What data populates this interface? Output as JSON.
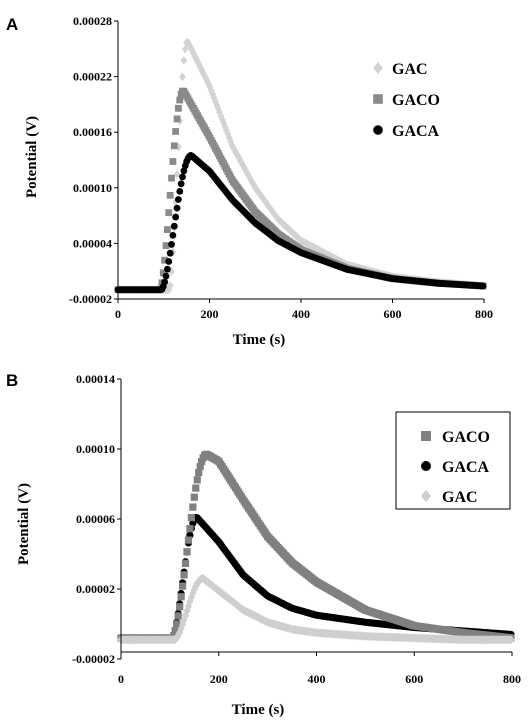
{
  "chart_data": [
    {
      "panel": "A",
      "type": "scatter",
      "xlabel": "Time (s)",
      "ylabel": "Potential (V)",
      "xlim": [
        0,
        800
      ],
      "ylim": [
        -2e-05,
        0.00028
      ],
      "x_ticks": [
        "0",
        "200",
        "400",
        "600",
        "800"
      ],
      "y_ticks": [
        "-0.00002",
        "0.00004",
        "0.00010",
        "0.00016",
        "0.00022",
        "0.00028"
      ],
      "y_tick_values": [
        -2e-05,
        4e-05,
        0.0001,
        0.00016,
        0.00022,
        0.00028
      ],
      "grid": false,
      "legend_position": "top-right",
      "legend_order": [
        "GAC",
        "GACO",
        "GACA"
      ],
      "series": [
        {
          "name": "GAC",
          "marker": "diamond",
          "color": "#d3d3d3",
          "baseline": -1e-05,
          "onset": 112,
          "peak_time": 152,
          "peak": 0.000258,
          "decay": [
            [
              152,
              0.000258
            ],
            [
              200,
              0.00021
            ],
            [
              250,
              0.000145
            ],
            [
              300,
              0.0001
            ],
            [
              350,
              6.6e-05
            ],
            [
              400,
              4.3e-05
            ],
            [
              500,
              1.7e-05
            ],
            [
              600,
              4e-06
            ],
            [
              700,
              -2e-06
            ],
            [
              800,
              -6e-06
            ]
          ]
        },
        {
          "name": "GACO",
          "marker": "square",
          "color": "#8a8a8a",
          "baseline": -1e-05,
          "onset": 92,
          "peak_time": 143,
          "peak": 0.000205,
          "decay": [
            [
              143,
              0.000205
            ],
            [
              200,
              0.000155
            ],
            [
              250,
              0.000108
            ],
            [
              300,
              7.4e-05
            ],
            [
              350,
              5e-05
            ],
            [
              400,
              3.3e-05
            ],
            [
              500,
              1.3e-05
            ],
            [
              600,
              2e-06
            ],
            [
              700,
              -3e-06
            ],
            [
              800,
              -6e-06
            ]
          ]
        },
        {
          "name": "GACA",
          "marker": "circle",
          "color": "#000000",
          "baseline": -1e-05,
          "onset": 95,
          "peak_time": 160,
          "peak": 0.000135,
          "decay": [
            [
              160,
              0.000135
            ],
            [
              200,
              0.000118
            ],
            [
              250,
              8.7e-05
            ],
            [
              300,
              6.2e-05
            ],
            [
              350,
              4.3e-05
            ],
            [
              400,
              3e-05
            ],
            [
              500,
              1.2e-05
            ],
            [
              600,
              2e-06
            ],
            [
              700,
              -3e-06
            ],
            [
              800,
              -6e-06
            ]
          ]
        }
      ]
    },
    {
      "panel": "B",
      "type": "scatter",
      "xlabel": "Time  (s)",
      "ylabel": "Potential (V)",
      "xlim": [
        0,
        800
      ],
      "ylim": [
        -2e-05,
        0.00014
      ],
      "x_ticks": [
        "0",
        "200",
        "400",
        "600",
        "800"
      ],
      "y_ticks": [
        "-0.00002",
        "0.00002",
        "0.00006",
        "0.00010",
        "0.00014"
      ],
      "y_tick_values": [
        -2e-05,
        2e-05,
        6e-05,
        0.0001,
        0.00014
      ],
      "grid": false,
      "legend_position": "top-right",
      "legend_order": [
        "GACO",
        "GACA",
        "GAC"
      ],
      "series": [
        {
          "name": "GACO",
          "marker": "square",
          "color": "#808080",
          "baseline": -8e-06,
          "onset": 105,
          "peak_time": 175,
          "peak": 9.7e-05,
          "decay": [
            [
              175,
              9.7e-05
            ],
            [
              200,
              9.3e-05
            ],
            [
              250,
              7.1e-05
            ],
            [
              300,
              5e-05
            ],
            [
              350,
              3.5e-05
            ],
            [
              400,
              2.4e-05
            ],
            [
              500,
              8e-06
            ],
            [
              600,
              -1e-06
            ],
            [
              700,
              -5e-06
            ],
            [
              800,
              -8e-06
            ]
          ]
        },
        {
          "name": "GACA",
          "marker": "circle",
          "color": "#000000",
          "baseline": -8e-06,
          "onset": 105,
          "peak_time": 155,
          "peak": 6.1e-05,
          "decay": [
            [
              155,
              6.1e-05
            ],
            [
              200,
              4.7e-05
            ],
            [
              250,
              2.8e-05
            ],
            [
              300,
              1.6e-05
            ],
            [
              350,
              9e-06
            ],
            [
              400,
              5e-06
            ],
            [
              500,
              1e-06
            ],
            [
              600,
              -2e-06
            ],
            [
              700,
              -4e-06
            ],
            [
              800,
              -6e-06
            ]
          ]
        },
        {
          "name": "GAC",
          "marker": "diamond",
          "color": "#cfcfcf",
          "baseline": -9e-06,
          "onset": 110,
          "peak_time": 168,
          "peak": 2.6e-05,
          "decay": [
            [
              168,
              2.6e-05
            ],
            [
              200,
              1.9e-05
            ],
            [
              250,
              8e-06
            ],
            [
              300,
              1e-06
            ],
            [
              350,
              -3e-06
            ],
            [
              400,
              -5e-06
            ],
            [
              500,
              -7e-06
            ],
            [
              600,
              -8e-06
            ],
            [
              700,
              -9e-06
            ],
            [
              800,
              -9e-06
            ]
          ]
        }
      ]
    }
  ]
}
